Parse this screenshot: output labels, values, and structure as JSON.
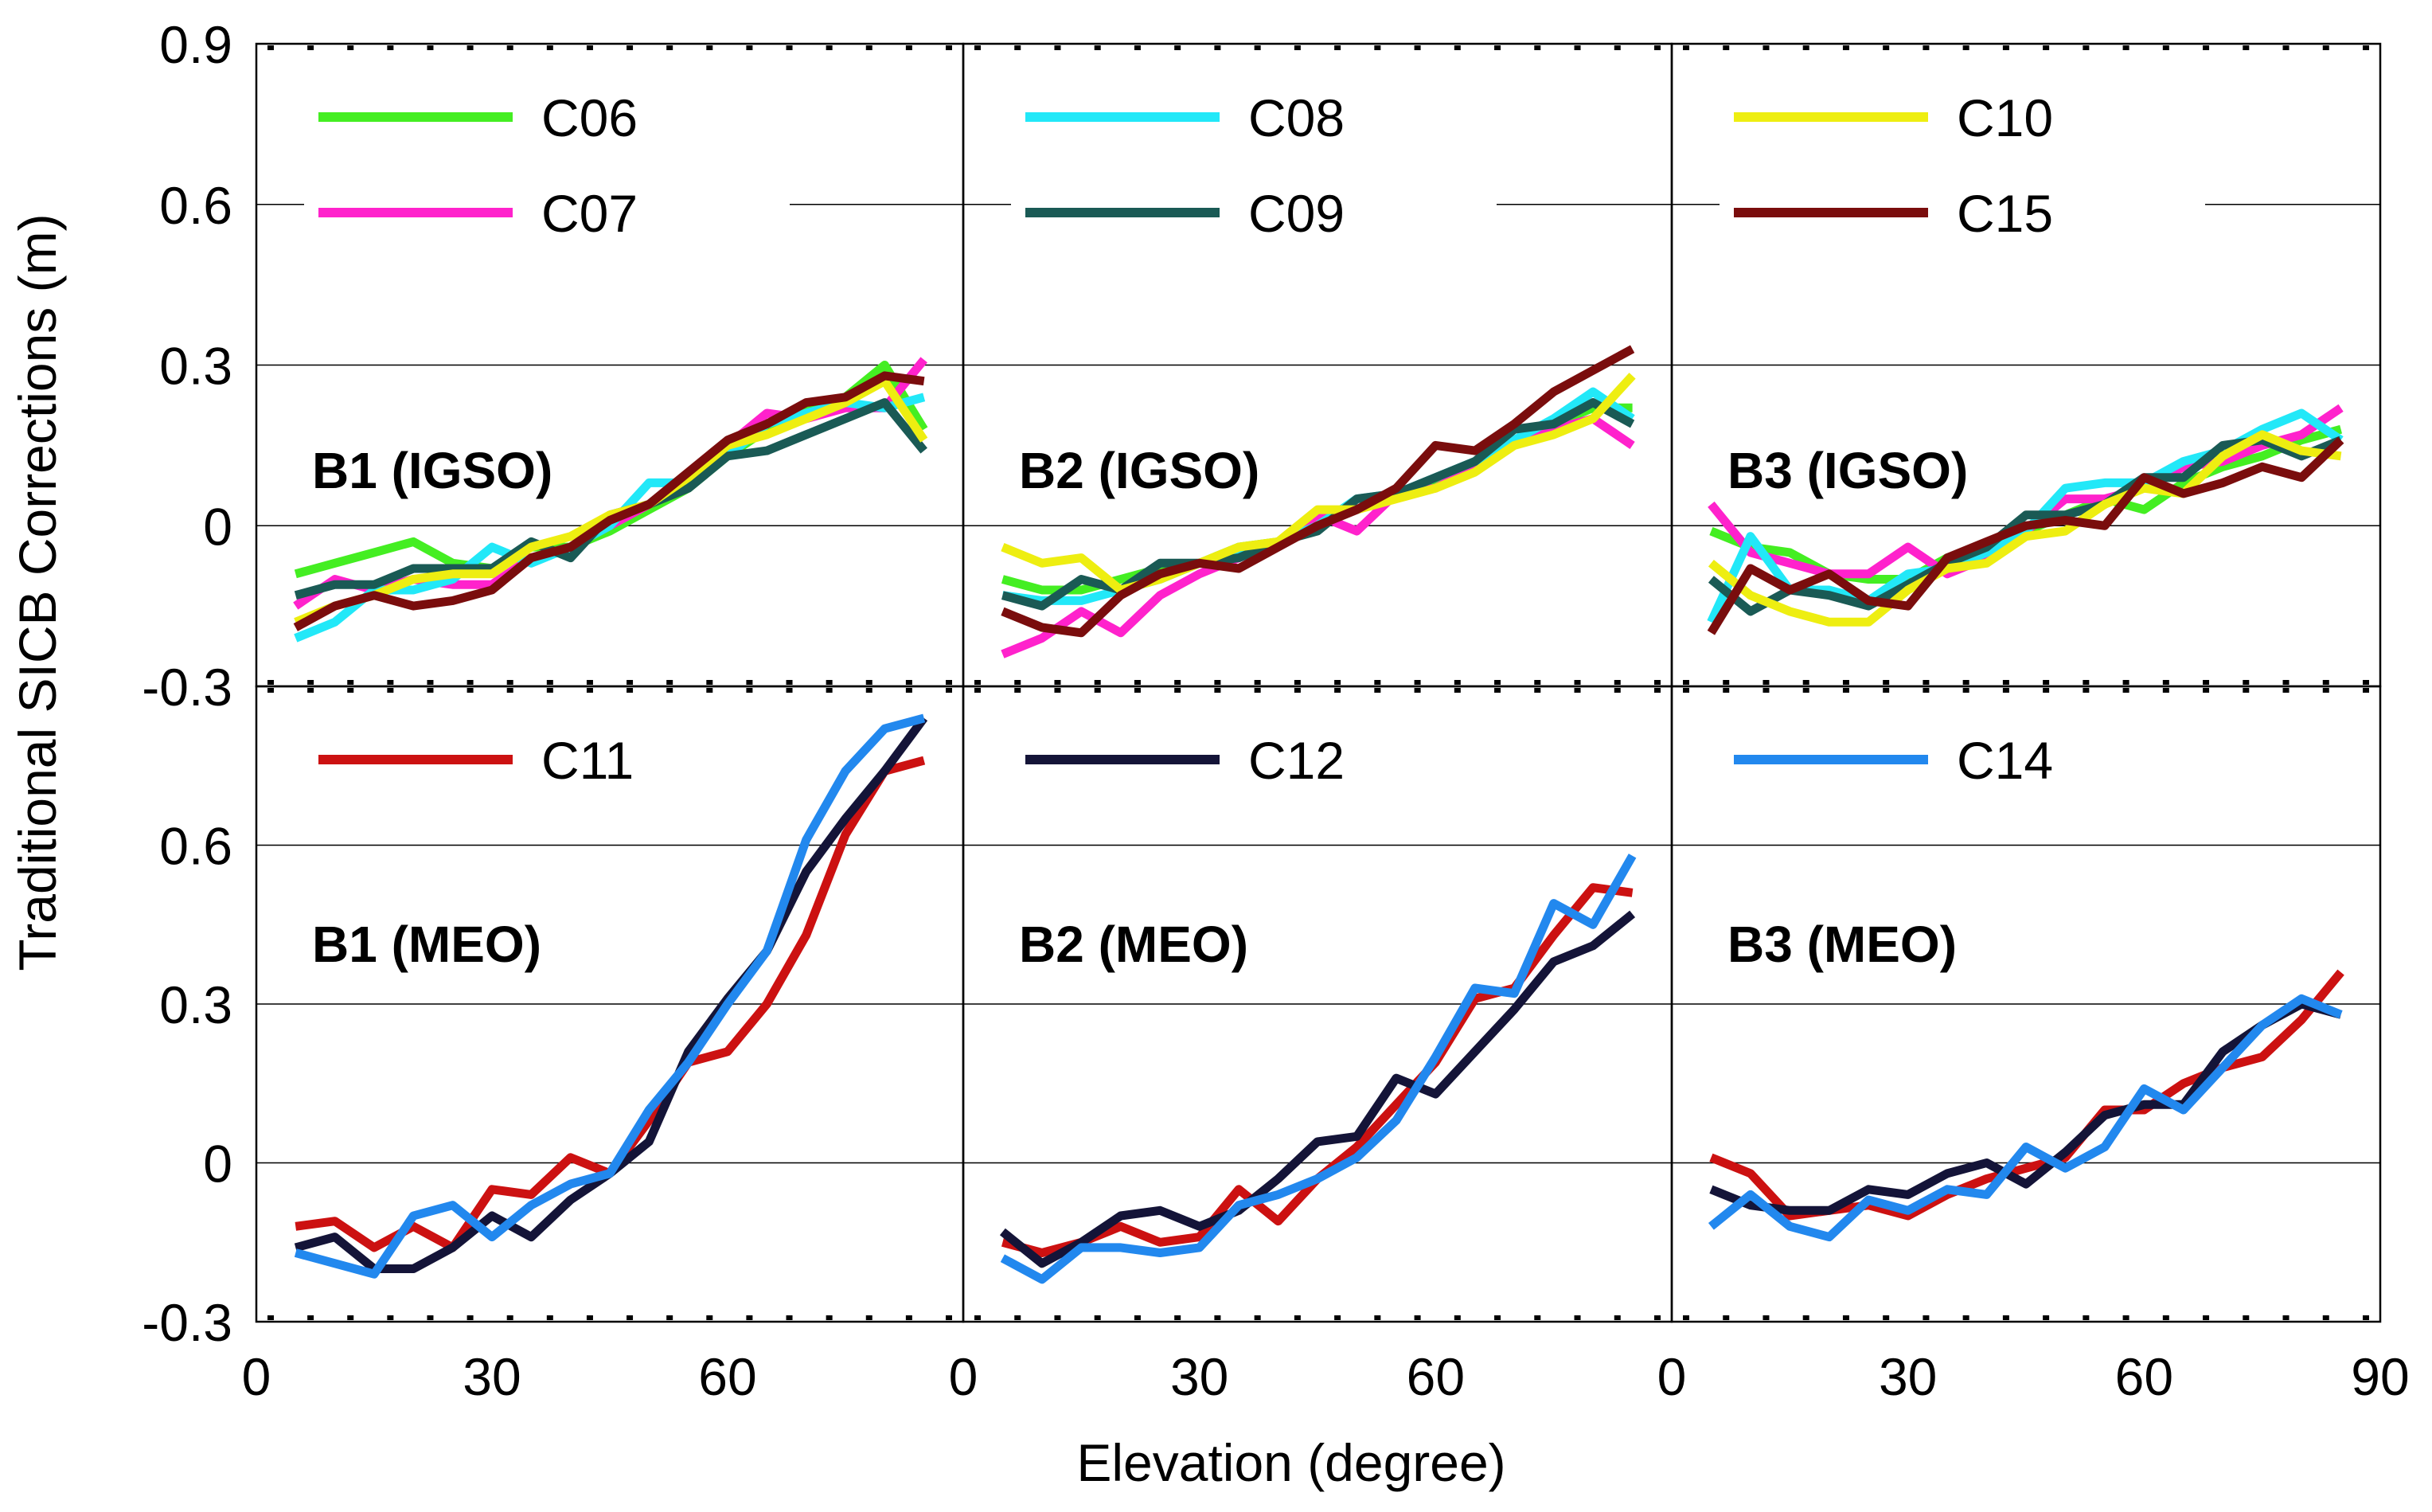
{
  "figure": {
    "xlabel": "Elevation (degree)",
    "ylabel": "Traditional SICB Corrections (m)",
    "x_ticks": [
      "0",
      "30",
      "60",
      "90"
    ],
    "y_ticks_top": [
      "0.9",
      "0.6",
      "0.3",
      "0",
      "-0.3"
    ],
    "y_ticks_bottom": [
      "0.6",
      "0.3",
      "0",
      "-0.3"
    ]
  },
  "chart_data": [
    {
      "type": "line",
      "title": "B1 (IGSO)",
      "xlim": [
        0,
        90
      ],
      "ylim": [
        -0.3,
        0.9
      ],
      "x": [
        5,
        10,
        15,
        20,
        25,
        30,
        35,
        40,
        45,
        50,
        55,
        60,
        65,
        70,
        75,
        80,
        85
      ],
      "series": [
        {
          "name": "C06",
          "color": "#44ee22",
          "values": [
            -0.09,
            -0.07,
            -0.05,
            -0.03,
            -0.07,
            -0.08,
            -0.04,
            -0.04,
            -0.01,
            0.03,
            0.07,
            0.13,
            0.18,
            0.22,
            0.24,
            0.3,
            0.18
          ]
        },
        {
          "name": "C07",
          "color": "#ff22cc",
          "values": [
            -0.15,
            -0.1,
            -0.12,
            -0.1,
            -0.11,
            -0.11,
            -0.06,
            -0.04,
            0.0,
            0.04,
            0.09,
            0.15,
            0.21,
            0.2,
            0.22,
            0.22,
            0.31
          ]
        },
        {
          "name": "C08",
          "color": "#22e8f8",
          "values": [
            -0.21,
            -0.18,
            -0.12,
            -0.12,
            -0.1,
            -0.04,
            -0.07,
            -0.04,
            0.0,
            0.08,
            0.08,
            0.13,
            0.19,
            0.21,
            0.23,
            0.22,
            0.24
          ]
        },
        {
          "name": "C09",
          "color": "#1a5a55",
          "values": [
            -0.13,
            -0.11,
            -0.11,
            -0.08,
            -0.08,
            -0.08,
            -0.03,
            -0.06,
            0.02,
            0.04,
            0.07,
            0.13,
            0.14,
            0.17,
            0.2,
            0.23,
            0.14
          ]
        },
        {
          "name": "C10",
          "color": "#eeee11",
          "values": [
            -0.18,
            -0.15,
            -0.13,
            -0.1,
            -0.09,
            -0.09,
            -0.04,
            -0.02,
            0.02,
            0.04,
            0.09,
            0.15,
            0.17,
            0.2,
            0.23,
            0.27,
            0.16
          ]
        },
        {
          "name": "C15",
          "color": "#7a0d0d",
          "values": [
            -0.19,
            -0.15,
            -0.13,
            -0.15,
            -0.14,
            -0.12,
            -0.06,
            -0.04,
            0.01,
            0.04,
            0.1,
            0.16,
            0.19,
            0.23,
            0.24,
            0.28,
            0.27
          ]
        }
      ]
    },
    {
      "type": "line",
      "title": "B2 (IGSO)",
      "xlim": [
        0,
        90
      ],
      "ylim": [
        -0.3,
        0.9
      ],
      "x": [
        5,
        10,
        15,
        20,
        25,
        30,
        35,
        40,
        45,
        50,
        55,
        60,
        65,
        70,
        75,
        80,
        85
      ],
      "series": [
        {
          "name": "C06",
          "color": "#44ee22",
          "values": [
            -0.1,
            -0.12,
            -0.12,
            -0.1,
            -0.08,
            -0.07,
            -0.04,
            -0.03,
            0.02,
            0.03,
            0.06,
            0.08,
            0.11,
            0.16,
            0.19,
            0.22,
            0.22
          ]
        },
        {
          "name": "C07",
          "color": "#ff22cc",
          "values": [
            -0.24,
            -0.21,
            -0.16,
            -0.2,
            -0.13,
            -0.09,
            -0.06,
            -0.03,
            0.02,
            -0.01,
            0.06,
            0.07,
            0.11,
            0.16,
            0.18,
            0.2,
            0.15
          ]
        },
        {
          "name": "C08",
          "color": "#22e8f8",
          "values": [
            -0.13,
            -0.14,
            -0.14,
            -0.12,
            -0.1,
            -0.07,
            -0.05,
            -0.03,
            0.0,
            0.05,
            0.06,
            0.09,
            0.12,
            0.16,
            0.2,
            0.25,
            0.2
          ]
        },
        {
          "name": "C09",
          "color": "#1a5a55",
          "values": [
            -0.13,
            -0.15,
            -0.1,
            -0.12,
            -0.07,
            -0.07,
            -0.06,
            -0.03,
            -0.01,
            0.05,
            0.06,
            0.09,
            0.12,
            0.18,
            0.19,
            0.23,
            0.19
          ]
        },
        {
          "name": "C10",
          "color": "#eeee11",
          "values": [
            -0.04,
            -0.07,
            -0.06,
            -0.12,
            -0.1,
            -0.07,
            -0.04,
            -0.03,
            0.03,
            0.03,
            0.05,
            0.07,
            0.1,
            0.15,
            0.17,
            0.2,
            0.28
          ]
        },
        {
          "name": "C15",
          "color": "#7a0d0d",
          "values": [
            -0.16,
            -0.19,
            -0.2,
            -0.13,
            -0.09,
            -0.07,
            -0.08,
            -0.04,
            0.0,
            0.03,
            0.07,
            0.15,
            0.14,
            0.19,
            0.25,
            0.29,
            0.33
          ]
        }
      ]
    },
    {
      "type": "line",
      "title": "B3 (IGSO)",
      "xlim": [
        0,
        90
      ],
      "ylim": [
        -0.3,
        0.9
      ],
      "x": [
        5,
        10,
        15,
        20,
        25,
        30,
        35,
        40,
        45,
        50,
        55,
        60,
        65,
        70,
        75,
        80,
        85
      ],
      "series": [
        {
          "name": "C06",
          "color": "#44ee22",
          "values": [
            -0.01,
            -0.04,
            -0.05,
            -0.09,
            -0.1,
            -0.1,
            -0.06,
            -0.06,
            -0.01,
            0.02,
            0.05,
            0.03,
            0.08,
            0.11,
            0.13,
            0.16,
            0.18
          ]
        },
        {
          "name": "C07",
          "color": "#ff22cc",
          "values": [
            0.04,
            -0.05,
            -0.07,
            -0.09,
            -0.09,
            -0.04,
            -0.09,
            -0.06,
            -0.01,
            0.05,
            0.05,
            0.07,
            0.11,
            0.12,
            0.15,
            0.17,
            0.22
          ]
        },
        {
          "name": "C08",
          "color": "#22e8f8",
          "values": [
            -0.18,
            -0.02,
            -0.12,
            -0.12,
            -0.14,
            -0.09,
            -0.08,
            -0.05,
            -0.01,
            0.07,
            0.08,
            0.08,
            0.12,
            0.14,
            0.18,
            0.21,
            0.16
          ]
        },
        {
          "name": "C09",
          "color": "#1a5a55",
          "values": [
            -0.1,
            -0.16,
            -0.12,
            -0.13,
            -0.15,
            -0.11,
            -0.07,
            -0.04,
            0.02,
            0.02,
            0.04,
            0.09,
            0.09,
            0.15,
            0.16,
            0.13,
            0.16
          ]
        },
        {
          "name": "C10",
          "color": "#eeee11",
          "values": [
            -0.07,
            -0.13,
            -0.16,
            -0.18,
            -0.18,
            -0.12,
            -0.08,
            -0.07,
            -0.02,
            -0.01,
            0.04,
            0.07,
            0.06,
            0.13,
            0.17,
            0.14,
            0.13
          ]
        },
        {
          "name": "C15",
          "color": "#7a0d0d",
          "values": [
            -0.2,
            -0.08,
            -0.12,
            -0.09,
            -0.14,
            -0.15,
            -0.06,
            -0.03,
            0.0,
            0.01,
            0.0,
            0.09,
            0.06,
            0.08,
            0.11,
            0.09,
            0.16
          ]
        }
      ]
    },
    {
      "type": "line",
      "title": "B1 (MEO)",
      "xlim": [
        0,
        90
      ],
      "ylim": [
        -0.3,
        0.9
      ],
      "x": [
        5,
        10,
        15,
        20,
        25,
        30,
        35,
        40,
        45,
        50,
        55,
        60,
        65,
        70,
        75,
        80,
        85
      ],
      "series": [
        {
          "name": "C11",
          "color": "#cc1111",
          "values": [
            -0.12,
            -0.11,
            -0.16,
            -0.12,
            -0.16,
            -0.05,
            -0.06,
            0.01,
            -0.02,
            0.08,
            0.19,
            0.21,
            0.3,
            0.43,
            0.62,
            0.74,
            0.76
          ]
        },
        {
          "name": "C12",
          "color": "#141438",
          "values": [
            -0.16,
            -0.14,
            -0.2,
            -0.2,
            -0.16,
            -0.1,
            -0.14,
            -0.07,
            -0.02,
            0.04,
            0.21,
            0.31,
            0.4,
            0.55,
            0.65,
            0.74,
            0.84
          ]
        },
        {
          "name": "C14",
          "color": "#2288ee",
          "values": [
            -0.17,
            -0.19,
            -0.21,
            -0.1,
            -0.08,
            -0.14,
            -0.08,
            -0.04,
            -0.02,
            0.1,
            0.19,
            0.3,
            0.4,
            0.61,
            0.74,
            0.82,
            0.84
          ]
        }
      ]
    },
    {
      "type": "line",
      "title": "B2 (MEO)",
      "xlim": [
        0,
        90
      ],
      "ylim": [
        -0.3,
        0.9
      ],
      "x": [
        5,
        10,
        15,
        20,
        25,
        30,
        35,
        40,
        45,
        50,
        55,
        60,
        65,
        70,
        75,
        80,
        85
      ],
      "series": [
        {
          "name": "C11",
          "color": "#cc1111",
          "values": [
            -0.15,
            -0.17,
            -0.15,
            -0.12,
            -0.15,
            -0.14,
            -0.05,
            -0.11,
            -0.03,
            0.03,
            0.11,
            0.19,
            0.31,
            0.33,
            0.43,
            0.52,
            0.51
          ]
        },
        {
          "name": "C12",
          "color": "#141438",
          "values": [
            -0.13,
            -0.19,
            -0.15,
            -0.1,
            -0.09,
            -0.12,
            -0.09,
            -0.03,
            0.04,
            0.05,
            0.16,
            0.13,
            0.21,
            0.29,
            0.38,
            0.41,
            0.47
          ]
        },
        {
          "name": "C14",
          "color": "#2288ee",
          "values": [
            -0.18,
            -0.22,
            -0.16,
            -0.16,
            -0.17,
            -0.16,
            -0.08,
            -0.06,
            -0.03,
            0.01,
            0.08,
            0.2,
            0.33,
            0.32,
            0.49,
            0.45,
            0.58
          ]
        }
      ]
    },
    {
      "type": "line",
      "title": "B3 (MEO)",
      "xlim": [
        0,
        90
      ],
      "ylim": [
        -0.3,
        0.9
      ],
      "x": [
        5,
        10,
        15,
        20,
        25,
        30,
        35,
        40,
        45,
        50,
        55,
        60,
        65,
        70,
        75,
        80,
        85
      ],
      "series": [
        {
          "name": "C11",
          "color": "#cc1111",
          "values": [
            0.01,
            -0.02,
            -0.1,
            -0.09,
            -0.08,
            -0.1,
            -0.06,
            -0.03,
            -0.01,
            0.01,
            0.1,
            0.1,
            0.15,
            0.18,
            0.2,
            0.27,
            0.36
          ]
        },
        {
          "name": "C12",
          "color": "#141438",
          "values": [
            -0.05,
            -0.08,
            -0.09,
            -0.09,
            -0.05,
            -0.06,
            -0.02,
            0.0,
            -0.04,
            0.02,
            0.09,
            0.11,
            0.11,
            0.21,
            0.26,
            0.3,
            0.28
          ]
        },
        {
          "name": "C14",
          "color": "#2288ee",
          "values": [
            -0.12,
            -0.06,
            -0.12,
            -0.14,
            -0.07,
            -0.09,
            -0.05,
            -0.06,
            0.03,
            -0.01,
            0.03,
            0.14,
            0.1,
            0.18,
            0.26,
            0.31,
            0.28
          ]
        }
      ]
    }
  ]
}
